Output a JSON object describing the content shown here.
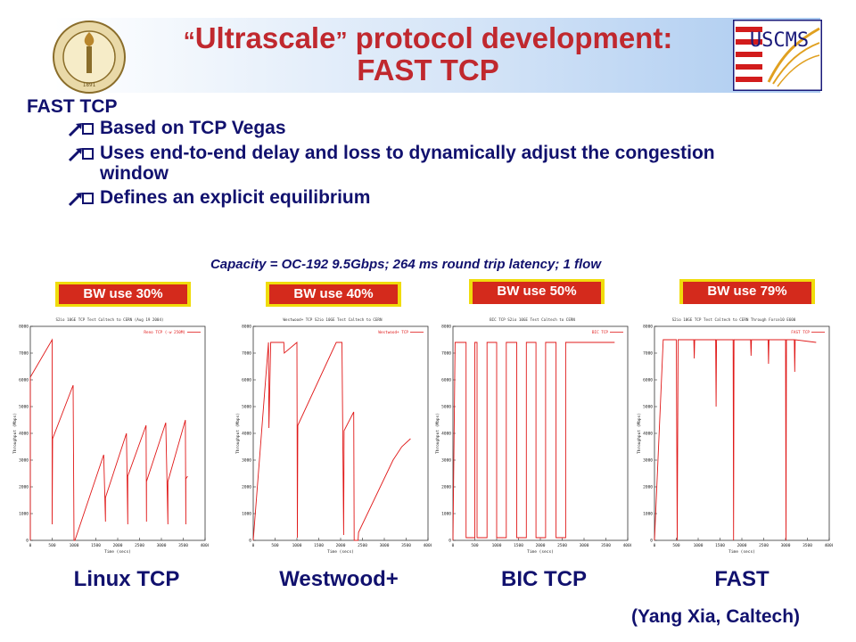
{
  "title": {
    "quote_open": "“",
    "line1_word": "Ultrascale",
    "quote_close": "”",
    "line1_rest": "protocol development:",
    "line2": "FAST TCP"
  },
  "logos": {
    "left": {
      "icon": "caltech-seal-logo",
      "year": "1891"
    },
    "right": {
      "icon": "uscms-logo",
      "text": "USCMS"
    }
  },
  "section": {
    "heading": "FAST TCP",
    "bullets": [
      {
        "icon": "arrow-bullet-icon",
        "text": "Based on TCP Vegas"
      },
      {
        "icon": "arrow-bullet-icon",
        "text": "Uses end-to-end delay and loss to dynamically adjust the congestion window"
      },
      {
        "icon": "arrow-bullet-icon",
        "text": "Defines an explicit equilibrium"
      }
    ]
  },
  "caption": "Capacity = OC-192 9.5Gbps; 264 ms round trip latency; 1 flow",
  "colors": {
    "title_red": "#c0282e",
    "navy": "#11116e",
    "badge_red": "#d42a1c",
    "badge_border": "#f0dc0c",
    "plot_line": "#e01818"
  },
  "chart_data": [
    {
      "type": "line",
      "label": "Linux TCP",
      "bw_badge": "BW use 30%",
      "plot_title": "S2io 10GE TCP Test Caltech to CERN (Aug 19 2004)",
      "legend": "Reno TCP (-w 250M)",
      "xlabel": "Time (secs)",
      "ylabel": "Throughput (Mbps)",
      "xlim": [
        0,
        4000
      ],
      "ylim": [
        0,
        8000
      ],
      "x_ticks": [
        "0",
        "500",
        "1000",
        "1500",
        "2000",
        "2500",
        "3000",
        "3500",
        "4000"
      ],
      "y_ticks": [
        "0",
        "1000",
        "2000",
        "3000",
        "4000",
        "5000",
        "6000",
        "7000",
        "8000"
      ],
      "x": [
        0,
        0,
        500,
        500,
        510,
        980,
        1000,
        1000,
        1020,
        1680,
        1720,
        1720,
        2200,
        2230,
        2230,
        2650,
        2660,
        2660,
        3100,
        3150,
        3150,
        3550,
        3560,
        3560,
        3600
      ],
      "y": [
        0,
        6100,
        7500,
        600,
        3800,
        5800,
        0,
        0,
        0,
        3200,
        700,
        1600,
        4000,
        600,
        2400,
        4300,
        700,
        2200,
        4400,
        600,
        2200,
        4500,
        600,
        2300,
        2400
      ]
    },
    {
      "type": "line",
      "label": "Westwood+",
      "bw_badge": "BW use 40%",
      "plot_title": "Westwood+ TCP S2io 10GE Test Caltech to CERN",
      "legend": "Westwood+ TCP",
      "xlabel": "Time (secs)",
      "ylabel": "Throughput (Mbps)",
      "xlim": [
        0,
        4000
      ],
      "ylim": [
        0,
        8000
      ],
      "x_ticks": [
        "0",
        "500",
        "1000",
        "1500",
        "2000",
        "2500",
        "3000",
        "3500",
        "4000"
      ],
      "y_ticks": [
        "0",
        "1000",
        "2000",
        "3000",
        "4000",
        "5000",
        "6000",
        "7000",
        "8000"
      ],
      "x": [
        0,
        350,
        360,
        400,
        700,
        710,
        1000,
        1010,
        1020,
        1900,
        2000,
        2030,
        2070,
        2080,
        2300,
        2310,
        2400,
        2410,
        3200,
        3400,
        3600
      ],
      "y": [
        0,
        7400,
        4200,
        7400,
        7400,
        7000,
        7400,
        100,
        4300,
        7400,
        7400,
        7400,
        200,
        4100,
        4800,
        0,
        0,
        300,
        3000,
        3500,
        3800
      ]
    },
    {
      "type": "line",
      "label": "BIC TCP",
      "bw_badge": "BW use 50%",
      "plot_title": "BIC TCP S2io 10GE Test Caltech to CERN",
      "legend": "BIC TCP",
      "xlabel": "Time (secs)",
      "ylabel": "Throughput (Mbps)",
      "xlim": [
        0,
        4000
      ],
      "ylim": [
        0,
        8000
      ],
      "x_ticks": [
        "0",
        "500",
        "1000",
        "1500",
        "2000",
        "2500",
        "3000",
        "3500",
        "4000"
      ],
      "y_ticks": [
        "0",
        "1000",
        "2000",
        "3000",
        "4000",
        "5000",
        "6000",
        "7000",
        "8000"
      ],
      "x": [
        0,
        50,
        300,
        300,
        500,
        500,
        550,
        550,
        780,
        780,
        1000,
        1000,
        1220,
        1220,
        1460,
        1460,
        1680,
        1680,
        1900,
        1900,
        2120,
        2120,
        2360,
        2360,
        2580,
        2580,
        3700
      ],
      "y": [
        0,
        7400,
        7400,
        100,
        100,
        7400,
        7400,
        100,
        100,
        7400,
        7400,
        100,
        100,
        7400,
        7400,
        100,
        100,
        7400,
        7400,
        100,
        100,
        7400,
        7400,
        100,
        100,
        7400,
        7400
      ]
    },
    {
      "type": "line",
      "label": "FAST",
      "bw_badge": "BW use 79%",
      "plot_title": "S2io 10GE TCP Test Caltech to CERN Through Force10 E600",
      "legend": "FAST TCP",
      "xlabel": "Time (secs)",
      "ylabel": "Throughput (Mbps)",
      "xlim": [
        0,
        4000
      ],
      "ylim": [
        0,
        8000
      ],
      "x_ticks": [
        "0",
        "500",
        "1000",
        "1500",
        "2000",
        "2500",
        "3000",
        "3500",
        "4000"
      ],
      "y_ticks": [
        "0",
        "1000",
        "2000",
        "3000",
        "4000",
        "5000",
        "6000",
        "7000",
        "8000"
      ],
      "x": [
        0,
        200,
        500,
        520,
        540,
        900,
        910,
        920,
        1400,
        1410,
        1420,
        1800,
        1810,
        1820,
        2200,
        2210,
        2220,
        2600,
        2610,
        2620,
        3000,
        3010,
        3020,
        3200,
        3210,
        3220,
        3700
      ],
      "y": [
        0,
        7500,
        7500,
        0,
        7500,
        7500,
        6800,
        7500,
        7500,
        5000,
        7500,
        7500,
        0,
        7500,
        7500,
        6900,
        7500,
        7500,
        6600,
        7500,
        7500,
        0,
        7500,
        7500,
        6300,
        7500,
        7400
      ]
    }
  ],
  "credit": "(Yang Xia, Caltech)"
}
